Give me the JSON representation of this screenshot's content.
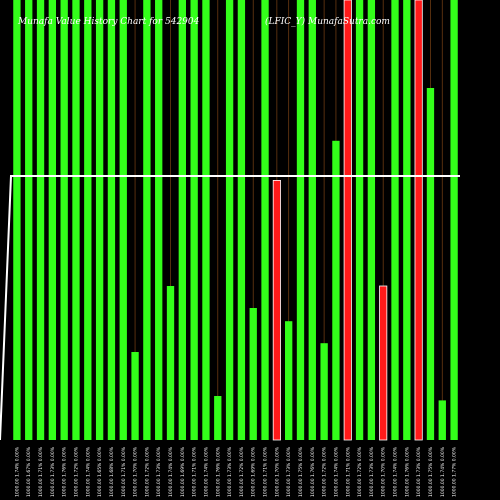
{
  "chart_data": {
    "type": "bar",
    "title_left": "Munafa Value History Chart for 542904",
    "title_right": "(LFIC_Y) MunafaSutra.com",
    "ylim": [
      0,
      100
    ],
    "line_value": 60,
    "colors": {
      "up": "#33ff1a",
      "down": "#ff1a1a",
      "line": "#ffffff",
      "background": "#000000"
    },
    "categories": [
      "1000.00 1.74% 0.00%",
      "1000.00 1.67% 0.00%",
      "1000.00 1.71% 0.00%",
      "1000.00 1.73% 0.00%",
      "1000.00 1.76% 0.00%",
      "1000.00 1.72% 0.00%",
      "1000.00 1.74% 0.00%",
      "1000.00 1.65% 0.00%",
      "1000.00 1.68% 0.00%",
      "1000.00 1.71% 0.00%",
      "1000.00 1.70% 0.00%",
      "1000.00 1.72% 0.00%",
      "1000.00 1.73% 0.00%",
      "1000.00 1.74% 0.00%",
      "1000.00 1.69% 0.00%",
      "1000.00 1.71% 0.00%",
      "1000.00 1.74% 0.00%",
      "1000.00 1.76% 0.00%",
      "1000.00 1.73% 0.00%",
      "1000.00 1.72% 0.00%",
      "1000.00 1.69% 0.00%",
      "1000.00 1.71% 0.00%",
      "1000.00 1.70% 0.00%",
      "1000.00 1.73% 0.00%",
      "1000.00 1.75% 0.00%",
      "1000.00 1.76% 0.00%",
      "1000.00 1.72% 0.00%",
      "1000.00 1.74% 0.00%",
      "1000.00 1.71% 0.00%",
      "1000.00 1.72% 0.00%",
      "1000.00 1.73% 0.00%",
      "1000.00 1.70% 0.00%",
      "1000.00 1.74% 0.00%",
      "1000.00 1.76% 0.00%",
      "1000.00 1.73% 0.00%",
      "1000.00 1.75% 0.00%",
      "1000.00 1.74% 0.00%",
      "1000.00 1.77% 0.00%"
    ],
    "values": [
      100,
      100,
      100,
      100,
      100,
      100,
      100,
      100,
      100,
      100,
      20,
      100,
      100,
      35,
      100,
      100,
      100,
      10,
      100,
      100,
      30,
      100,
      59,
      27,
      100,
      100,
      22,
      68,
      100,
      100,
      100,
      35,
      100,
      100,
      100,
      80,
      9,
      100
    ],
    "bar_colors": [
      "up",
      "up",
      "up",
      "up",
      "up",
      "up",
      "up",
      "up",
      "up",
      "up",
      "up",
      "up",
      "up",
      "up",
      "up",
      "up",
      "up",
      "up",
      "up",
      "up",
      "up",
      "up",
      "down",
      "up",
      "up",
      "up",
      "up",
      "up",
      "down",
      "up",
      "up",
      "down",
      "up",
      "up",
      "down",
      "up",
      "up",
      "up"
    ]
  }
}
